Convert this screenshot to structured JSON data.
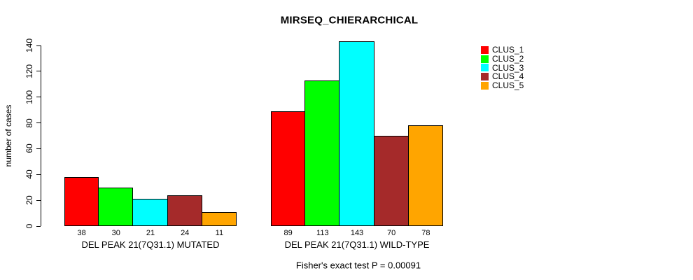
{
  "title": "MIRSEQ_CHIERARCHICAL",
  "footer": "Fisher's exact test P = 0.00091",
  "chart_data": {
    "type": "bar",
    "title": "MIRSEQ_CHIERARCHICAL",
    "xlabel": "",
    "ylabel": "number of cases",
    "ylim": [
      0,
      140
    ],
    "yticks": [
      0,
      20,
      40,
      60,
      80,
      100,
      120,
      140
    ],
    "grid": false,
    "legend_position": "top-right",
    "series_names": [
      "CLUS_1",
      "CLUS_2",
      "CLUS_3",
      "CLUS_4",
      "CLUS_5"
    ],
    "colors": [
      "#FF0000",
      "#00FF00",
      "#00FFFF",
      "#A52A2A",
      "#FFA500"
    ],
    "groups": [
      {
        "label": "DEL PEAK 21(7Q31.1) MUTATED",
        "values": [
          38,
          30,
          21,
          24,
          11
        ]
      },
      {
        "label": "DEL PEAK 21(7Q31.1) WILD-TYPE",
        "values": [
          89,
          113,
          143,
          70,
          78
        ]
      }
    ],
    "bar_value_labels_shown": true,
    "annotation": "Fisher's exact test P = 0.00091"
  }
}
